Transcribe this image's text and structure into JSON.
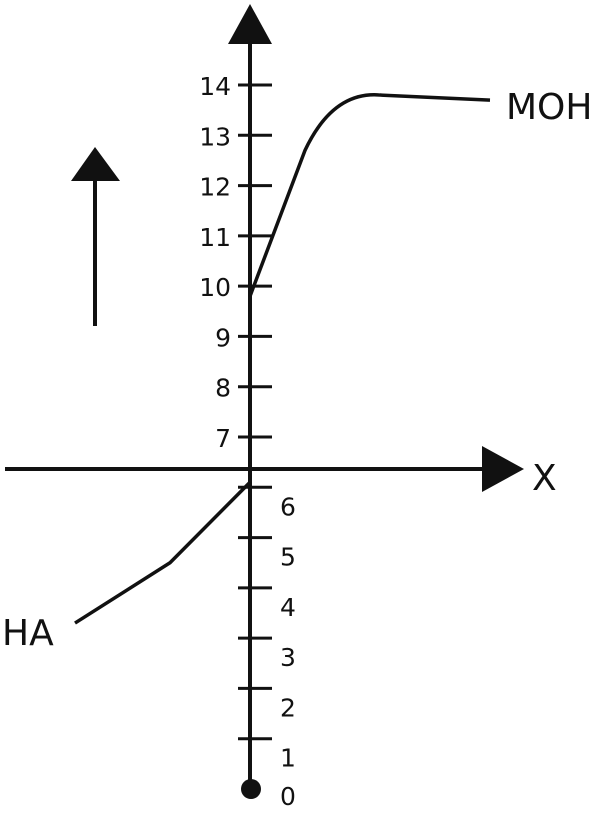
{
  "chart_data": {
    "type": "line",
    "y_ticks": [
      "0",
      "1",
      "2",
      "3",
      "4",
      "5",
      "6",
      "7",
      "8",
      "9",
      "10",
      "11",
      "12",
      "13",
      "14"
    ],
    "ylim": [
      0,
      14
    ],
    "x_axis_label": "X",
    "series": [
      {
        "name": "HA",
        "points": [
          [
            -3.5,
            3.3
          ],
          [
            -1.6,
            4.5
          ],
          [
            0,
            6.1
          ]
        ]
      },
      {
        "name": "MOH",
        "points": [
          [
            0,
            9.8
          ],
          [
            1.1,
            12.7
          ],
          [
            2.6,
            13.8
          ],
          [
            4.8,
            13.7
          ]
        ]
      }
    ],
    "upward_arrow": true
  }
}
